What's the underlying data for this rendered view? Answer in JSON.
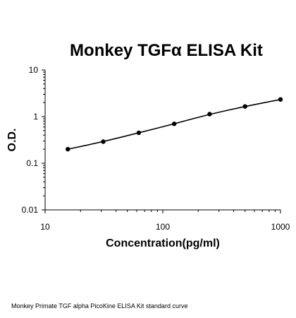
{
  "chart_data": {
    "type": "scatter",
    "title": "Monkey TGFα ELISA Kit",
    "xlabel": "Concentration(pg/ml)",
    "ylabel": "O.D.",
    "xscale": "log",
    "yscale": "log",
    "xlim": [
      10,
      1000
    ],
    "ylim": [
      0.01,
      10
    ],
    "x_ticks": [
      "10",
      "100",
      "1000"
    ],
    "y_ticks": [
      "10",
      "1",
      "0.1",
      "0.01"
    ],
    "grid": false,
    "series": [
      {
        "x": [
          15.6,
          31.2,
          62.5,
          125,
          250,
          500,
          1000
        ],
        "y": [
          0.2,
          0.29,
          0.45,
          0.7,
          1.13,
          1.65,
          2.33
        ],
        "marker": "circle",
        "color": "#000000"
      }
    ],
    "fit_line": {
      "color": "#000000",
      "type": "smooth"
    }
  },
  "caption": "Monkey Primate TGF alpha PicoKine ELISA Kit standard curve"
}
